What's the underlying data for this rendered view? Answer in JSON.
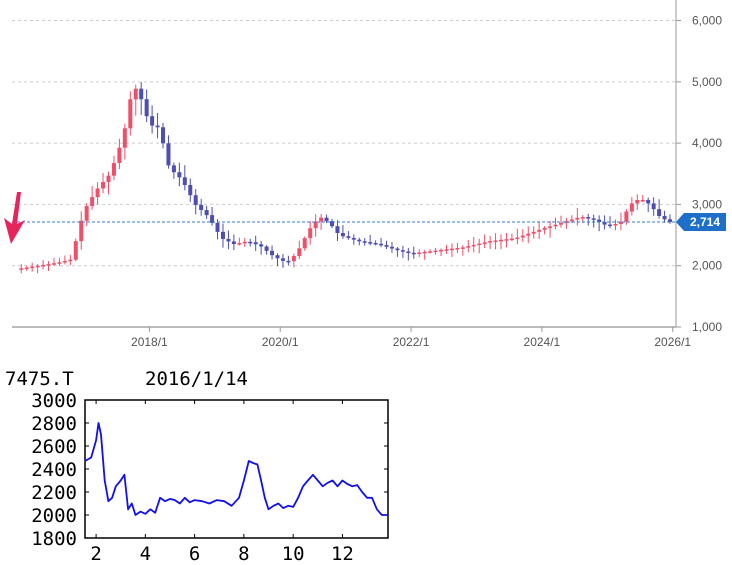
{
  "chart_data": [
    {
      "type": "candlestick",
      "y_ticks": [
        "1,000",
        "2,000",
        "3,000",
        "4,000",
        "5,000",
        "6,000"
      ],
      "y_tick_values": [
        1000,
        2000,
        3000,
        4000,
        5000,
        6000
      ],
      "ylim": [
        1000,
        6400
      ],
      "x_ticks": [
        "2018/1",
        "2020/1",
        "2022/1",
        "2024/1",
        "2026/1"
      ],
      "x_tick_values": [
        2018.0,
        2020.0,
        2022.0,
        2024.0,
        2026.0
      ],
      "xlim": [
        2015.9,
        2026.05
      ],
      "current_price": 2714,
      "current_price_label": "2,714",
      "colors": {
        "up": "#f04f6a",
        "down": "#4d4db3",
        "current_line": "#3a7bd5",
        "badge": "#1e6fc9",
        "arrow": "#e8245c",
        "grid": "#cccccc"
      },
      "close_series": {
        "x": [
          2016.0,
          2016.3,
          2016.6,
          2016.8,
          2017.0,
          2017.2,
          2017.4,
          2017.6,
          2017.75,
          2017.85,
          2018.0,
          2018.15,
          2018.3,
          2018.5,
          2018.7,
          2018.9,
          2019.1,
          2019.3,
          2019.5,
          2019.7,
          2019.9,
          2020.1,
          2020.25,
          2020.45,
          2020.6,
          2020.75,
          2020.9,
          2021.2,
          2021.5,
          2021.8,
          2022.0,
          2022.4,
          2022.8,
          2023.2,
          2023.6,
          2024.0,
          2024.3,
          2024.6,
          2024.8,
          2025.0,
          2025.2,
          2025.35,
          2025.5,
          2025.65,
          2025.8,
          2025.95
        ],
        "values": [
          1950,
          2000,
          2050,
          2100,
          2900,
          3250,
          3500,
          4100,
          4950,
          4800,
          4300,
          4250,
          3600,
          3400,
          3000,
          2800,
          2450,
          2350,
          2400,
          2320,
          2150,
          2050,
          2200,
          2600,
          2800,
          2700,
          2500,
          2400,
          2350,
          2250,
          2200,
          2250,
          2300,
          2400,
          2450,
          2600,
          2700,
          2800,
          2750,
          2650,
          2700,
          3000,
          3100,
          3000,
          2800,
          2714
        ]
      }
    },
    {
      "type": "line",
      "symbol": "7475.T",
      "date": "2016/1/14",
      "y_ticks": [
        "1800",
        "2000",
        "2200",
        "2400",
        "2600",
        "2800",
        "3000"
      ],
      "y_tick_values": [
        1800,
        2000,
        2200,
        2400,
        2600,
        2800,
        3000
      ],
      "ylim": [
        1800,
        3000
      ],
      "x_ticks": [
        "2",
        "4",
        "6",
        "8",
        "10",
        "12"
      ],
      "x_tick_values": [
        2,
        4,
        6,
        8,
        10,
        12
      ],
      "xlim": [
        1.55,
        13.85
      ],
      "line_color": "#1010ee",
      "x": [
        1.55,
        1.8,
        2.0,
        2.1,
        2.2,
        2.35,
        2.5,
        2.65,
        2.8,
        3.0,
        3.15,
        3.3,
        3.45,
        3.6,
        3.8,
        4.0,
        4.2,
        4.4,
        4.6,
        4.8,
        5.0,
        5.2,
        5.4,
        5.6,
        5.8,
        6.0,
        6.3,
        6.6,
        6.9,
        7.2,
        7.5,
        7.8,
        8.0,
        8.2,
        8.4,
        8.55,
        8.7,
        8.85,
        9.0,
        9.2,
        9.4,
        9.6,
        9.8,
        10.0,
        10.2,
        10.4,
        10.6,
        10.8,
        11.0,
        11.2,
        11.4,
        11.6,
        11.8,
        12.0,
        12.2,
        12.4,
        12.6,
        12.8,
        13.0,
        13.2,
        13.4,
        13.6,
        13.85
      ],
      "values": [
        2470,
        2500,
        2650,
        2800,
        2700,
        2300,
        2120,
        2150,
        2250,
        2300,
        2350,
        2050,
        2100,
        2000,
        2030,
        2010,
        2050,
        2020,
        2150,
        2120,
        2140,
        2130,
        2100,
        2150,
        2110,
        2130,
        2120,
        2100,
        2130,
        2120,
        2080,
        2150,
        2300,
        2470,
        2450,
        2440,
        2300,
        2150,
        2050,
        2080,
        2100,
        2060,
        2080,
        2070,
        2150,
        2250,
        2300,
        2350,
        2300,
        2250,
        2280,
        2300,
        2250,
        2300,
        2270,
        2250,
        2260,
        2200,
        2150,
        2150,
        2050,
        2000,
        2000
      ]
    }
  ]
}
